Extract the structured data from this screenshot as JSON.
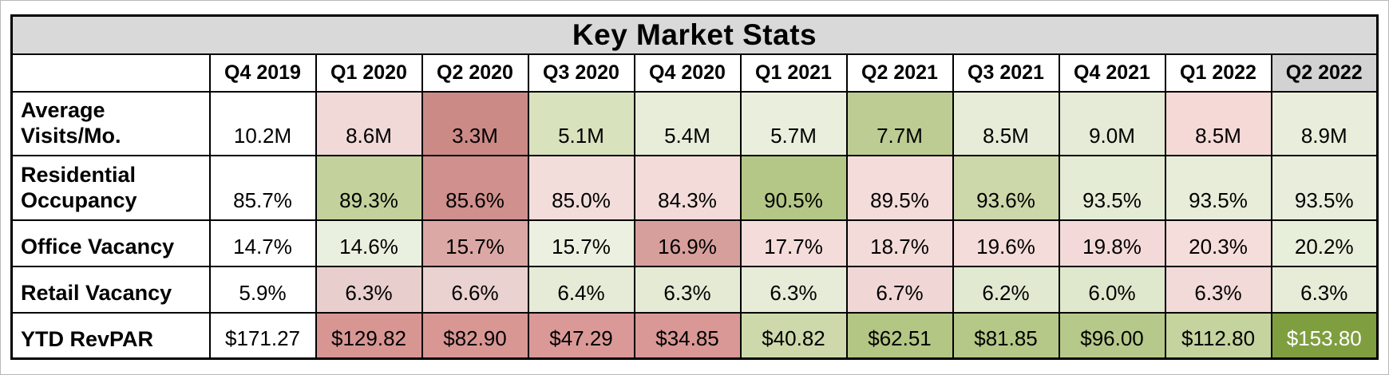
{
  "title": "Key Market Stats",
  "colors": {
    "title_bg": "#d9d9d9",
    "current_quarter_header_bg": "#d2d2d2",
    "grid_border": "#000000",
    "default_cell_bg": "#ffffff",
    "default_text": "#000000",
    "highlight_text": "#ffffff"
  },
  "table": {
    "columns": [
      {
        "label": "Q4 2019",
        "bg": "#ffffff"
      },
      {
        "label": "Q1 2020",
        "bg": "#ffffff"
      },
      {
        "label": "Q2 2020",
        "bg": "#ffffff"
      },
      {
        "label": "Q3 2020",
        "bg": "#ffffff"
      },
      {
        "label": "Q4 2020",
        "bg": "#ffffff"
      },
      {
        "label": "Q1 2021",
        "bg": "#ffffff"
      },
      {
        "label": "Q2 2021",
        "bg": "#ffffff"
      },
      {
        "label": "Q3 2021",
        "bg": "#ffffff"
      },
      {
        "label": "Q4 2021",
        "bg": "#ffffff"
      },
      {
        "label": "Q1 2022",
        "bg": "#ffffff"
      },
      {
        "label": "Q2 2022",
        "bg": "#d2d2d2"
      }
    ],
    "rows": [
      {
        "label": "Average Visits/Mo.",
        "cells": [
          {
            "v": "10.2M",
            "bg": "#ffffff"
          },
          {
            "v": "8.6M",
            "bg": "#f0d9d7"
          },
          {
            "v": "3.3M",
            "bg": "#cc8a87"
          },
          {
            "v": "5.1M",
            "bg": "#d8e2bd"
          },
          {
            "v": "5.4M",
            "bg": "#e7edd8"
          },
          {
            "v": "5.7M",
            "bg": "#e9efdc"
          },
          {
            "v": "7.7M",
            "bg": "#bccc92"
          },
          {
            "v": "8.5M",
            "bg": "#e6ecd8"
          },
          {
            "v": "9.0M",
            "bg": "#e5ebd6"
          },
          {
            "v": "8.5M",
            "bg": "#f5d9d7"
          },
          {
            "v": "8.9M",
            "bg": "#e8eedb"
          }
        ]
      },
      {
        "label": "Residential Occupancy",
        "cells": [
          {
            "v": "85.7%",
            "bg": "#ffffff"
          },
          {
            "v": "89.3%",
            "bg": "#c3d29c"
          },
          {
            "v": "85.6%",
            "bg": "#d0908d"
          },
          {
            "v": "85.0%",
            "bg": "#f3dddb"
          },
          {
            "v": "84.3%",
            "bg": "#f2dbd9"
          },
          {
            "v": "90.5%",
            "bg": "#b5c786"
          },
          {
            "v": "89.5%",
            "bg": "#f4dcda"
          },
          {
            "v": "93.6%",
            "bg": "#ccd8a9"
          },
          {
            "v": "93.5%",
            "bg": "#e5ecd5"
          },
          {
            "v": "93.5%",
            "bg": "#e7edd9"
          },
          {
            "v": "93.5%",
            "bg": "#e8eedb"
          }
        ]
      },
      {
        "label": "Office Vacancy",
        "cells": [
          {
            "v": "14.7%",
            "bg": "#ffffff"
          },
          {
            "v": "14.6%",
            "bg": "#eaf0df"
          },
          {
            "v": "15.7%",
            "bg": "#dca8a5"
          },
          {
            "v": "15.7%",
            "bg": "#ebf0e1"
          },
          {
            "v": "16.9%",
            "bg": "#d79f9c"
          },
          {
            "v": "17.7%",
            "bg": "#f4dcda"
          },
          {
            "v": "18.7%",
            "bg": "#f3dbd9"
          },
          {
            "v": "19.6%",
            "bg": "#f4dcda"
          },
          {
            "v": "19.8%",
            "bg": "#f3dad8"
          },
          {
            "v": "20.3%",
            "bg": "#f5dddb"
          },
          {
            "v": "20.2%",
            "bg": "#e7eed9"
          }
        ]
      },
      {
        "label": "Retail Vacancy",
        "cells": [
          {
            "v": "5.9%",
            "bg": "#ffffff"
          },
          {
            "v": "6.3%",
            "bg": "#e8cfcd"
          },
          {
            "v": "6.6%",
            "bg": "#ead2d0"
          },
          {
            "v": "6.4%",
            "bg": "#e5ebd6"
          },
          {
            "v": "6.3%",
            "bg": "#e4ead4"
          },
          {
            "v": "6.3%",
            "bg": "#e6ecd7"
          },
          {
            "v": "6.7%",
            "bg": "#f0d7d5"
          },
          {
            "v": "6.2%",
            "bg": "#e2e9d1"
          },
          {
            "v": "6.0%",
            "bg": "#dfe7cc"
          },
          {
            "v": "6.3%",
            "bg": "#f2dad8"
          },
          {
            "v": "6.3%",
            "bg": "#e6ecd7"
          }
        ]
      },
      {
        "label": "YTD RevPAR",
        "cells": [
          {
            "v": "$171.27",
            "bg": "#ffffff"
          },
          {
            "v": "$129.82",
            "bg": "#d89693"
          },
          {
            "v": "$82.90",
            "bg": "#d99794"
          },
          {
            "v": "$47.29",
            "bg": "#da9997"
          },
          {
            "v": "$34.85",
            "bg": "#d99895"
          },
          {
            "v": "$40.82",
            "bg": "#cdd9ab"
          },
          {
            "v": "$62.51",
            "bg": "#b3c684"
          },
          {
            "v": "$81.85",
            "bg": "#b5c887"
          },
          {
            "v": "$96.00",
            "bg": "#b7c98a"
          },
          {
            "v": "$112.80",
            "bg": "#c5d39f"
          },
          {
            "v": "$153.80",
            "bg": "#7f9e3f",
            "fg": "#ffffff"
          }
        ]
      }
    ]
  },
  "chart_data": {
    "type": "table",
    "title": "Key Market Stats",
    "categories": [
      "Q4 2019",
      "Q1 2020",
      "Q2 2020",
      "Q3 2020",
      "Q4 2020",
      "Q1 2021",
      "Q2 2021",
      "Q3 2021",
      "Q4 2021",
      "Q1 2022",
      "Q2 2022"
    ],
    "series": [
      {
        "name": "Average Visits/Mo.",
        "values": [
          "10.2M",
          "8.6M",
          "3.3M",
          "5.1M",
          "5.4M",
          "5.7M",
          "7.7M",
          "8.5M",
          "9.0M",
          "8.5M",
          "8.9M"
        ]
      },
      {
        "name": "Residential Occupancy",
        "values": [
          "85.7%",
          "89.3%",
          "85.6%",
          "85.0%",
          "84.3%",
          "90.5%",
          "89.5%",
          "93.6%",
          "93.5%",
          "93.5%",
          "93.5%"
        ]
      },
      {
        "name": "Office Vacancy",
        "values": [
          "14.7%",
          "14.6%",
          "15.7%",
          "15.7%",
          "16.9%",
          "17.7%",
          "18.7%",
          "19.6%",
          "19.8%",
          "20.3%",
          "20.2%"
        ]
      },
      {
        "name": "Retail Vacancy",
        "values": [
          "5.9%",
          "6.3%",
          "6.6%",
          "6.4%",
          "6.3%",
          "6.3%",
          "6.7%",
          "6.2%",
          "6.0%",
          "6.3%",
          "6.3%"
        ]
      },
      {
        "name": "YTD RevPAR",
        "values": [
          "$171.27",
          "$129.82",
          "$82.90",
          "$47.29",
          "$34.85",
          "$40.82",
          "$62.51",
          "$81.85",
          "$96.00",
          "$112.80",
          "$153.80"
        ]
      }
    ],
    "layout_hints": {
      "heatmap": "red-white-green conditional formatting per row",
      "highlighted_column": "Q2 2022",
      "highlighted_cell": "YTD RevPAR Q2 2022 (dark olive, white text)"
    }
  }
}
